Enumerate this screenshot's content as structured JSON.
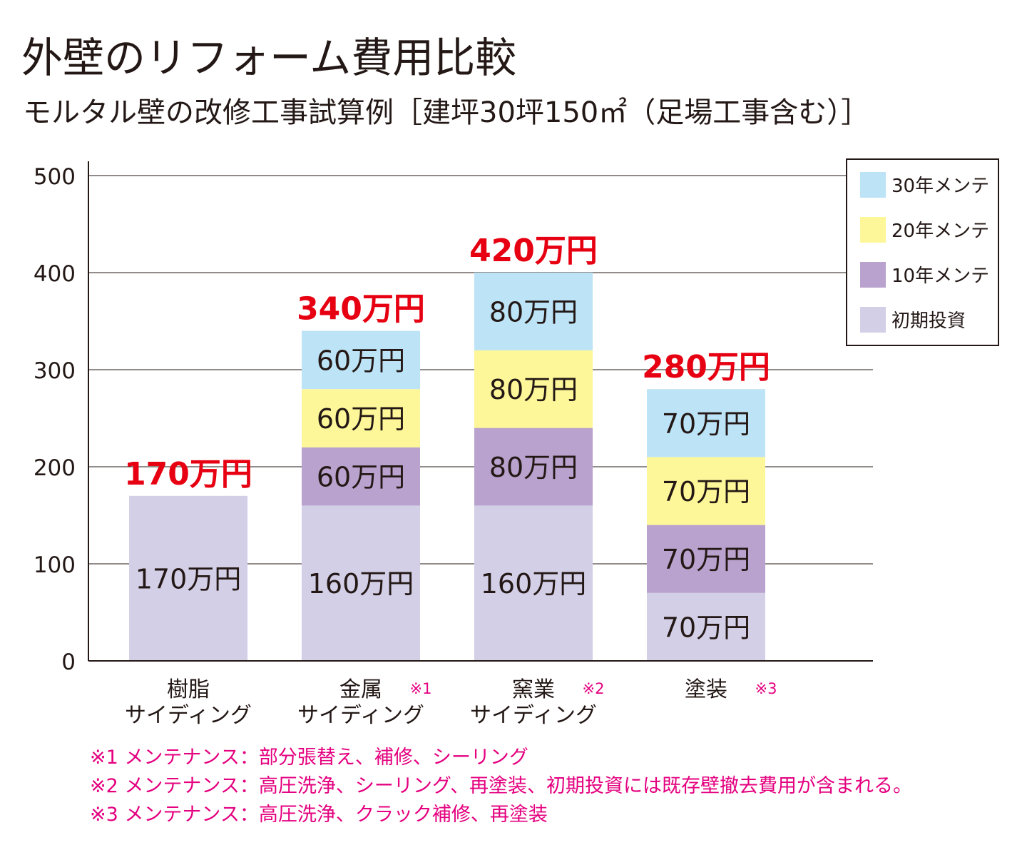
{
  "title": "外壁のリフォーム費用比較",
  "subtitle": "モルタル壁の改修工事試算例［建坪30坪150㎡（足場工事含む）］",
  "chart_data": {
    "type": "bar",
    "stacked": true,
    "ylim": [
      0,
      500
    ],
    "yticks": [
      0,
      100,
      200,
      300,
      400,
      500
    ],
    "grid": true,
    "legend_position": "top-right",
    "categories": [
      {
        "name": [
          "樹脂",
          "サイディング"
        ],
        "note": ""
      },
      {
        "name": [
          "金属",
          "サイディング"
        ],
        "note": "※1"
      },
      {
        "name": [
          "窯業",
          "サイディング"
        ],
        "note": "※2"
      },
      {
        "name": [
          "塗装"
        ],
        "note": "※3"
      }
    ],
    "series": [
      {
        "name": "初期投資",
        "color": "#d3cfe7",
        "values": [
          170,
          160,
          160,
          70
        ]
      },
      {
        "name": "10年メンテ",
        "color": "#b9a2cd",
        "values": [
          0,
          60,
          80,
          70
        ]
      },
      {
        "name": "20年メンテ",
        "color": "#fdf799",
        "values": [
          0,
          60,
          80,
          70
        ]
      },
      {
        "name": "30年メンテ",
        "color": "#bde3f7",
        "values": [
          0,
          60,
          80,
          70
        ]
      }
    ],
    "value_unit": "万円",
    "totals": [
      "170万円",
      "340万円",
      "420万円",
      "280万円"
    ],
    "total_color": "#e60012",
    "note_color": "#e4007f"
  },
  "notes": [
    "※1 メンテナンス：部分張替え、補修、シーリング",
    "※2 メンテナンス：高圧洗浄、シーリング、再塗装、初期投資には既存壁撤去費用が含まれる。",
    "※3 メンテナンス：高圧洗浄、クラック補修、再塗装"
  ]
}
